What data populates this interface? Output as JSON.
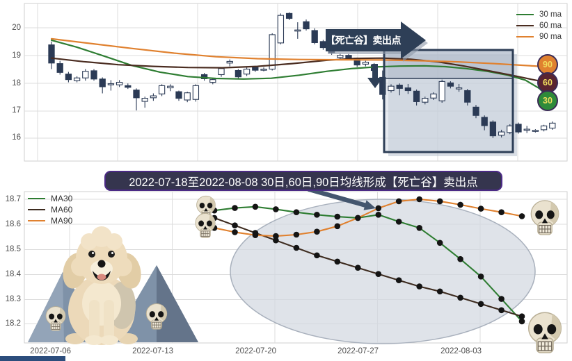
{
  "top_chart": {
    "legend": [
      {
        "label": "30 ma",
        "color": "#2e7d32"
      },
      {
        "label": "60 ma",
        "color": "#4a2c20"
      },
      {
        "label": "90 ma",
        "color": "#e0812f"
      }
    ],
    "y_tick_labels": [
      "20",
      "19",
      "18",
      "17",
      "16"
    ],
    "annotation_banner": "【死亡谷】卖出点",
    "ma_badges": [
      {
        "label": "90",
        "color": "#e0812f"
      },
      {
        "label": "60",
        "color": "#5a2430"
      },
      {
        "label": "30",
        "color": "#2e8b3a"
      }
    ]
  },
  "subtitle": "2022-07-18至2022-08-08 30日,60日,90日均线形成【死亡谷】卖出点",
  "bottom_chart": {
    "legend": [
      {
        "label": "MA30",
        "color": "#2e7d32"
      },
      {
        "label": "MA60",
        "color": "#3d2b1f"
      },
      {
        "label": "MA90",
        "color": "#e0812f"
      }
    ],
    "y_tick_labels": [
      "18.7",
      "18.6",
      "18.5",
      "18.4",
      "18.3",
      "18.2"
    ],
    "x_tick_labels": [
      "2022-07-06",
      "2022-07-13",
      "2022-07-20",
      "2022-07-27",
      "2022-08-03"
    ]
  },
  "chart_data": [
    {
      "type": "candlestick",
      "title": "",
      "ylabel": "",
      "ylim": [
        15.2,
        20.9
      ],
      "y_ticks": [
        20,
        19,
        18,
        17,
        16
      ],
      "grid": true,
      "legend_position": "upper-right",
      "candle_colors": {
        "bearish_fill": "#2b3a55",
        "bullish_fill": "#ffffff",
        "outline": "#2b3a55"
      },
      "candles_ohlc": [
        [
          19.38,
          19.5,
          18.5,
          18.72
        ],
        [
          18.7,
          18.8,
          18.3,
          18.38
        ],
        [
          18.32,
          18.4,
          18.02,
          18.12
        ],
        [
          18.08,
          18.24,
          18.02,
          18.18
        ],
        [
          18.18,
          18.5,
          18.08,
          18.42
        ],
        [
          18.44,
          18.5,
          18.08,
          18.14
        ],
        [
          18.14,
          18.2,
          17.62,
          17.86
        ],
        [
          17.93,
          18.1,
          17.72,
          17.97
        ],
        [
          17.93,
          18.1,
          17.85,
          18.02
        ],
        [
          17.9,
          17.98,
          17.78,
          17.84
        ],
        [
          17.74,
          17.8,
          17.0,
          17.46
        ],
        [
          17.33,
          17.5,
          17.1,
          17.44
        ],
        [
          17.46,
          17.62,
          17.35,
          17.53
        ],
        [
          17.6,
          17.95,
          17.52,
          17.9
        ],
        [
          17.82,
          17.95,
          17.7,
          17.88
        ],
        [
          17.68,
          17.72,
          17.35,
          17.44
        ],
        [
          17.38,
          17.68,
          17.3,
          17.64
        ],
        [
          17.4,
          17.95,
          17.32,
          17.9
        ],
        [
          18.3,
          18.36,
          18.08,
          18.15
        ],
        [
          18.02,
          18.18,
          17.95,
          18.12
        ],
        [
          18.3,
          18.56,
          18.22,
          18.52
        ],
        [
          18.72,
          18.85,
          18.6,
          18.78
        ],
        [
          18.45,
          18.5,
          18.15,
          18.22
        ],
        [
          18.32,
          18.56,
          18.25,
          18.5
        ],
        [
          18.56,
          18.6,
          18.4,
          18.46
        ],
        [
          18.48,
          18.56,
          18.42,
          18.5
        ],
        [
          18.5,
          19.8,
          18.45,
          19.75
        ],
        [
          19.45,
          20.52,
          19.4,
          20.45
        ],
        [
          20.52,
          20.56,
          20.28,
          20.34
        ],
        [
          19.88,
          20.2,
          19.6,
          19.92
        ],
        [
          20.22,
          20.3,
          19.9,
          19.96
        ],
        [
          19.9,
          19.98,
          19.4,
          19.46
        ],
        [
          19.5,
          19.56,
          19.2,
          19.28
        ],
        [
          19.2,
          19.3,
          19.02,
          19.1
        ],
        [
          18.92,
          19.06,
          18.85,
          19.0
        ],
        [
          19.0,
          19.05,
          18.82,
          18.9
        ],
        [
          18.87,
          18.92,
          18.58,
          18.65
        ],
        [
          18.68,
          18.8,
          18.6,
          18.75
        ],
        [
          18.66,
          18.72,
          18.38,
          18.45
        ],
        [
          18.2,
          18.45,
          17.4,
          17.58
        ],
        [
          17.72,
          17.95,
          17.65,
          17.88
        ],
        [
          17.92,
          17.98,
          17.55,
          17.8
        ],
        [
          17.82,
          17.96,
          17.6,
          17.72
        ],
        [
          17.7,
          17.76,
          17.18,
          17.32
        ],
        [
          17.3,
          17.5,
          17.22,
          17.44
        ],
        [
          17.45,
          17.66,
          17.38,
          17.6
        ],
        [
          17.35,
          18.12,
          17.28,
          18.05
        ],
        [
          18.0,
          18.06,
          17.8,
          17.88
        ],
        [
          17.78,
          17.96,
          17.68,
          17.82
        ],
        [
          17.72,
          17.78,
          17.18,
          17.3
        ],
        [
          17.12,
          17.2,
          16.72,
          16.82
        ],
        [
          16.75,
          16.82,
          16.28,
          16.45
        ],
        [
          16.58,
          16.64,
          16.0,
          16.08
        ],
        [
          16.1,
          16.3,
          16.02,
          16.22
        ],
        [
          16.2,
          16.5,
          16.14,
          16.44
        ],
        [
          16.5,
          16.56,
          16.16,
          16.22
        ],
        [
          16.28,
          16.44,
          16.18,
          16.32
        ],
        [
          16.26,
          16.32,
          16.2,
          16.28
        ],
        [
          16.3,
          16.48,
          16.24,
          16.44
        ],
        [
          16.36,
          16.6,
          16.3,
          16.54
        ]
      ],
      "ma_series": [
        {
          "name": "30 ma",
          "color": "#2e7d32",
          "points": [
            [
              74,
              19.55
            ],
            [
              110,
              19.3
            ],
            [
              150,
              18.97
            ],
            [
              190,
              18.63
            ],
            [
              230,
              18.39
            ],
            [
              270,
              18.23
            ],
            [
              310,
              18.16
            ],
            [
              350,
              18.14
            ],
            [
              390,
              18.17
            ],
            [
              430,
              18.28
            ],
            [
              470,
              18.42
            ],
            [
              505,
              18.52
            ],
            [
              540,
              18.58
            ],
            [
              575,
              18.61
            ],
            [
              610,
              18.62
            ],
            [
              640,
              18.59
            ],
            [
              670,
              18.52
            ],
            [
              700,
              18.42
            ],
            [
              730,
              18.28
            ],
            [
              755,
              18.1
            ],
            [
              775,
              17.8
            ],
            [
              790,
              17.42
            ]
          ]
        },
        {
          "name": "60 ma",
          "color": "#4a2c20",
          "points": [
            [
              74,
              18.9
            ],
            [
              120,
              18.77
            ],
            [
              170,
              18.66
            ],
            [
              220,
              18.6
            ],
            [
              270,
              18.56
            ],
            [
              320,
              18.55
            ],
            [
              370,
              18.6
            ],
            [
              420,
              18.7
            ],
            [
              470,
              18.82
            ],
            [
              510,
              18.89
            ],
            [
              550,
              18.9
            ],
            [
              590,
              18.86
            ],
            [
              630,
              18.76
            ],
            [
              665,
              18.62
            ],
            [
              700,
              18.45
            ],
            [
              735,
              18.28
            ],
            [
              765,
              18.12
            ],
            [
              790,
              18.0
            ]
          ]
        },
        {
          "name": "90 ma",
          "color": "#e0812f",
          "points": [
            [
              74,
              19.6
            ],
            [
              130,
              19.43
            ],
            [
              190,
              19.25
            ],
            [
              250,
              19.08
            ],
            [
              310,
              18.95
            ],
            [
              370,
              18.88
            ],
            [
              430,
              18.85
            ],
            [
              490,
              18.84
            ],
            [
              550,
              18.83
            ],
            [
              610,
              18.8
            ],
            [
              660,
              18.76
            ],
            [
              710,
              18.7
            ],
            [
              750,
              18.64
            ],
            [
              790,
              18.58
            ]
          ]
        }
      ],
      "annotations": {
        "banner_text": "【死亡谷】卖出点",
        "highlight_box": "shaded region over the breakdown candles",
        "ma_end_badges": [
          "90",
          "60",
          "30"
        ]
      }
    },
    {
      "type": "line",
      "title": "2022-07-18至2022-08-08 30日,60日,90日均线形成【死亡谷】卖出点",
      "x_dates": [
        "2022-07-18",
        "2022-07-19",
        "2022-07-20",
        "2022-07-21",
        "2022-07-22",
        "2022-07-25",
        "2022-07-26",
        "2022-07-27",
        "2022-07-28",
        "2022-07-29",
        "2022-08-01",
        "2022-08-02",
        "2022-08-03",
        "2022-08-04",
        "2022-08-05",
        "2022-08-08"
      ],
      "x_tick_labels": [
        "2022-07-06",
        "2022-07-13",
        "2022-07-20",
        "2022-07-27",
        "2022-08-03"
      ],
      "ylim": [
        18.12,
        18.73
      ],
      "y_ticks": [
        18.7,
        18.6,
        18.5,
        18.4,
        18.3,
        18.2
      ],
      "grid": true,
      "legend_position": "upper-left",
      "marker": "black dot on every point",
      "series": [
        {
          "name": "MA30",
          "color": "#2e7d32",
          "values": [
            18.655,
            18.665,
            18.67,
            18.66,
            18.648,
            18.638,
            18.63,
            18.625,
            18.638,
            18.61,
            18.585,
            18.525,
            18.46,
            18.39,
            18.3,
            18.21
          ]
        },
        {
          "name": "MA60",
          "color": "#3d2b1f",
          "values": [
            18.625,
            18.595,
            18.565,
            18.535,
            18.505,
            18.475,
            18.45,
            18.425,
            18.4,
            18.375,
            18.35,
            18.33,
            18.305,
            18.28,
            18.255,
            18.23
          ]
        },
        {
          "name": "MA90",
          "color": "#e0812f",
          "values": [
            18.585,
            18.568,
            18.556,
            18.552,
            18.558,
            18.57,
            18.592,
            18.625,
            18.664,
            18.692,
            18.7,
            18.692,
            18.678,
            18.662,
            18.648,
            18.632
          ]
        }
      ],
      "annotations": {
        "ellipse_highlight": "large gray ellipse over the crossover region",
        "skulls": "skull icons at series start and end points",
        "dog_illustration": "poodle with mountains and skulls at lower left"
      }
    }
  ]
}
